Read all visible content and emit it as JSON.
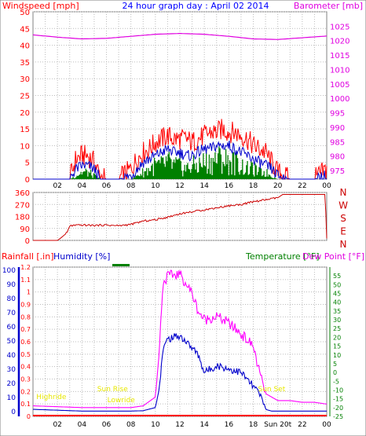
{
  "header": {
    "left_title": "Windspeed [mph]",
    "center_title": "24 hour graph day : April 02 2014",
    "right_title": "Barometer [mb]"
  },
  "colors": {
    "wind": "#ff0000",
    "gust_avg": "#0000cc",
    "wind_green": "#008000",
    "barometer": "#e000e0",
    "direction": "#cc0000",
    "humidity": "#0000cc",
    "temperature": "#008000",
    "dewpoint": "#ff00ff",
    "rain": "#ff0000",
    "astro": "#e8e800"
  },
  "hour_labels": [
    "02",
    "04",
    "06",
    "08",
    "10",
    "12",
    "14",
    "16",
    "18",
    "20",
    "22",
    "00"
  ],
  "panel3_hour_labels": [
    "02",
    "04",
    "06",
    "08",
    "10",
    "12",
    "14",
    "16",
    "18",
    "Sun 20t",
    "22",
    "00"
  ],
  "chart_data": [
    {
      "type": "line",
      "id": "wind-barometer",
      "title": "24 hour graph day : April 02 2014",
      "ylabel": "Windspeed [mph]",
      "ylim": [
        0,
        50
      ],
      "y_ticks": [
        0,
        5,
        10,
        15,
        20,
        25,
        30,
        35,
        40,
        45,
        50
      ],
      "y2label": "Barometer [mb]",
      "y2lim": [
        972,
        1030
      ],
      "y2_ticks": [
        975,
        980,
        985,
        990,
        995,
        1000,
        1005,
        1010,
        1015,
        1020,
        1025
      ],
      "x_hours": [
        0,
        1,
        2,
        3,
        3.5,
        4,
        4.5,
        5,
        5.5,
        6,
        7,
        8,
        8.5,
        9,
        9.5,
        10,
        10.5,
        11,
        11.5,
        12,
        12.5,
        13,
        13.5,
        14,
        14.5,
        15,
        15.5,
        16,
        16.5,
        17,
        17.5,
        18,
        18.5,
        19,
        19.5,
        20,
        21,
        22,
        23,
        24
      ],
      "series": [
        {
          "values": [
            0,
            0,
            0,
            0,
            6,
            7,
            7,
            5,
            1,
            0,
            0,
            3,
            6,
            8,
            9,
            11,
            12,
            13,
            12,
            12,
            12,
            11,
            12,
            13,
            14,
            14,
            15,
            14,
            14,
            13,
            12,
            10,
            9,
            8,
            5,
            2,
            0,
            0,
            0,
            3
          ]
        },
        {
          "values": [
            0,
            0,
            0,
            0,
            3,
            4,
            4,
            3,
            0,
            0,
            0,
            1,
            3,
            5,
            6,
            7,
            8,
            9,
            8,
            8,
            7,
            7,
            8,
            9,
            9,
            10,
            10,
            10,
            9,
            8,
            7,
            6,
            5,
            4,
            3,
            1,
            0,
            0,
            0,
            1
          ]
        },
        {
          "values": [
            0,
            0,
            0,
            0,
            1,
            2,
            2,
            1,
            0,
            0,
            0,
            0,
            1,
            2,
            3,
            4,
            4,
            5,
            4,
            4,
            3,
            4,
            4,
            5,
            5,
            6,
            6,
            5,
            5,
            4,
            3,
            3,
            2,
            2,
            1,
            0,
            0,
            0,
            0,
            0
          ]
        },
        {
          "x_hours": [
            0,
            2,
            4,
            6,
            8,
            10,
            12,
            14,
            16,
            18,
            20,
            22,
            24
          ],
          "values": [
            1022,
            1021.2,
            1020.6,
            1020.8,
            1021.5,
            1022.2,
            1022.5,
            1022.2,
            1021.5,
            1020.6,
            1020.4,
            1021.0,
            1021.6
          ]
        }
      ]
    },
    {
      "type": "line",
      "id": "wind-direction",
      "ylim": [
        0,
        360
      ],
      "y_ticks": [
        0,
        90,
        180,
        270,
        360
      ],
      "compass_labels": [
        "N",
        "W",
        "S",
        "E",
        "N"
      ],
      "x_hours": [
        0,
        2,
        2.3,
        2.8,
        3,
        4,
        5,
        6,
        7,
        8,
        9,
        10,
        11,
        12,
        13,
        14,
        15,
        16,
        17,
        18,
        19,
        20,
        20.4,
        22,
        23.9,
        23.95
      ],
      "values": [
        0,
        0,
        20,
        60,
        110,
        115,
        113,
        115,
        110,
        120,
        145,
        155,
        175,
        200,
        215,
        230,
        245,
        260,
        270,
        290,
        305,
        320,
        345,
        345,
        345,
        15
      ]
    },
    {
      "type": "line",
      "id": "rain-humidity-temp",
      "ylabel": "Rainfall [.in]",
      "ylim": [
        0,
        1.2
      ],
      "y_ticks": [
        0,
        0.1,
        0.2,
        0.3,
        0.4,
        0.5,
        0.6,
        0.7,
        0.8,
        0.9,
        1,
        1.1,
        1.2
      ],
      "hum_label": "Humidity [%]",
      "hum_ticks": [
        0,
        10,
        20,
        30,
        40,
        50,
        60,
        70,
        80,
        90,
        100
      ],
      "temp_label": "Temperature [°F]",
      "dew_label": "Dew Point [°F]",
      "y2lim": [
        -25,
        60
      ],
      "y2_ticks": [
        -25,
        -20,
        -15,
        -10,
        -5,
        0,
        5,
        10,
        15,
        20,
        25,
        30,
        35,
        40,
        45,
        50,
        55
      ],
      "series": [
        {
          "x_hours": [
            0,
            2,
            4,
            6,
            8,
            9,
            10,
            10.3,
            10.6,
            11,
            12,
            13,
            13.5,
            14,
            15,
            16,
            17,
            18,
            18.5,
            19,
            19.5,
            20,
            21,
            22,
            23,
            24
          ],
          "values": [
            -19,
            -19.5,
            -20,
            -20,
            -20,
            -19,
            -14,
            10,
            50,
            55,
            56,
            45,
            35,
            30,
            32,
            28,
            22,
            15,
            0,
            -12,
            -14,
            -16,
            -16,
            -17,
            -17,
            -18
          ]
        },
        {
          "x_hours": [
            0,
            2,
            4,
            6,
            8,
            9,
            10,
            10.3,
            10.6,
            11,
            12,
            13,
            13.5,
            14,
            15,
            16,
            17,
            18,
            18.5,
            19,
            19.5,
            20,
            21,
            22,
            23,
            24
          ],
          "values": [
            -21,
            -21.5,
            -22,
            -22,
            -22,
            -21.8,
            -20,
            -10,
            12,
            19,
            21,
            14,
            10,
            0,
            4,
            2,
            0,
            -8,
            -12,
            -21,
            -22,
            -22,
            -22,
            -22,
            -22,
            -22
          ]
        },
        {
          "x_hours": [
            0,
            24
          ],
          "values": [
            0,
            0
          ]
        }
      ],
      "annotations": [
        {
          "text": "Highride",
          "hour": 1.5
        },
        {
          "text": "Sun Rise",
          "hour": 6.5
        },
        {
          "text": "Lowride",
          "hour": 7.2
        },
        {
          "text": "Sun Set",
          "hour": 19.5
        }
      ]
    }
  ]
}
